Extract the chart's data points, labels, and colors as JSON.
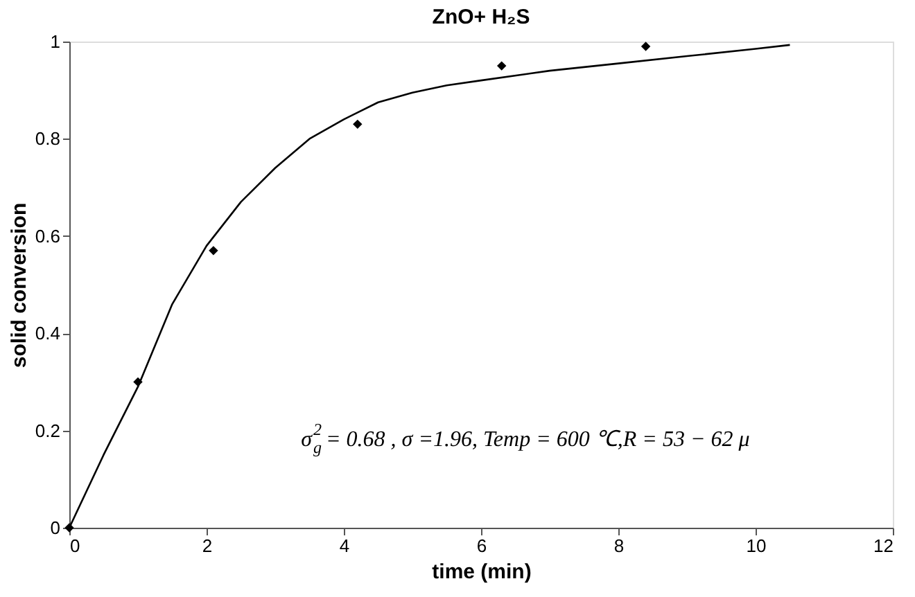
{
  "chart_data": {
    "type": "scatter",
    "title": "ZnO+ H₂S",
    "xlabel": "time (min)",
    "ylabel": "solid conversion",
    "xlim": [
      0,
      12
    ],
    "xticks": [
      0,
      2,
      4,
      6,
      8,
      10,
      12
    ],
    "ylim": [
      0,
      1
    ],
    "yticks": [
      0,
      0.2,
      0.4,
      0.6,
      0.8,
      1
    ],
    "grid": false,
    "annotations": [
      "σ$_{g}$$^{2}$ = 0.68 , σ =1.96, Temp = 600 ℃,R = 53 − 62 μ"
    ],
    "series": [
      {
        "marker": "diamond",
        "color": "#000000",
        "x": [
          0,
          1,
          2.1,
          4.2,
          6.3,
          8.4
        ],
        "values": [
          0,
          0.3,
          0.57,
          0.83,
          0.95,
          0.99
        ]
      },
      {
        "type": "line",
        "marker": "none",
        "line_style": "solid",
        "color": "#000000",
        "x": [
          0,
          0.5,
          1,
          1.5,
          2,
          2.5,
          3,
          3.5,
          4,
          4.5,
          5,
          5.5,
          6,
          7,
          8,
          9,
          10,
          10.5
        ],
        "values": [
          0,
          0.15,
          0.29,
          0.46,
          0.58,
          0.67,
          0.74,
          0.8,
          0.84,
          0.875,
          0.895,
          0.91,
          0.92,
          0.94,
          0.955,
          0.97,
          0.985,
          0.993
        ]
      }
    ]
  }
}
